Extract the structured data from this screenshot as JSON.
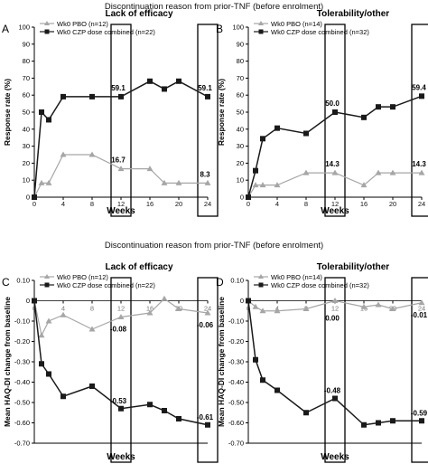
{
  "headings": {
    "top": "Discontinuation reason from prior-TNF (before enrolment)",
    "bottom": "Discontinuation reason from prior-TNF (before enrolment)"
  },
  "colors": {
    "pbo": "#a6a6a6",
    "czp": "#1a1a1a",
    "box": "#000000",
    "axis": "#000000"
  },
  "chart_data": [
    {
      "panel_letter": "A",
      "type": "line",
      "title": "Lack of efficacy",
      "xlabel": "Weeks",
      "ylabel": "Response rate (%)",
      "xlim": [
        0,
        24
      ],
      "ylim": [
        0,
        100
      ],
      "xticks": [
        0,
        4,
        8,
        12,
        16,
        20,
        24
      ],
      "yticks": [
        0,
        10,
        20,
        30,
        40,
        50,
        60,
        70,
        80,
        90,
        100
      ],
      "ytick_labels": [
        "0",
        "10",
        "20",
        "30",
        "40",
        "50",
        "60",
        "70",
        "80",
        "90",
        "100"
      ],
      "legend": "top-left",
      "highlight_weeks": [
        12,
        24
      ],
      "series": [
        {
          "name": "Wk0 PBO (n=12)",
          "marker": "triangle",
          "x": [
            0,
            1,
            2,
            4,
            8,
            12,
            16,
            18,
            20,
            24
          ],
          "y": [
            0,
            8.3,
            8.3,
            25.0,
            25.0,
            16.7,
            16.7,
            8.3,
            8.3,
            8.3
          ]
        },
        {
          "name": "Wk0 CZP dose combined (n=22)",
          "marker": "square",
          "x": [
            0,
            1,
            2,
            4,
            8,
            12,
            16,
            18,
            20,
            24
          ],
          "y": [
            0,
            50.0,
            45.5,
            59.1,
            59.1,
            59.1,
            68.2,
            63.6,
            68.2,
            59.1
          ]
        }
      ],
      "annotations": [
        {
          "text": "59.1",
          "x": 12,
          "y": 59.1,
          "series": 1
        },
        {
          "text": "16.7",
          "x": 12,
          "y": 16.7,
          "series": 0
        },
        {
          "text": "59.1",
          "x": 24,
          "y": 59.1,
          "series": 1
        },
        {
          "text": "8.3",
          "x": 24,
          "y": 8.3,
          "series": 0
        }
      ]
    },
    {
      "panel_letter": "B",
      "type": "line",
      "title": "Tolerability/other",
      "xlabel": "Weeks",
      "ylabel": "Response rate (%)",
      "xlim": [
        0,
        24
      ],
      "ylim": [
        0,
        100
      ],
      "xticks": [
        0,
        4,
        8,
        12,
        16,
        20,
        24
      ],
      "yticks": [
        0,
        10,
        20,
        30,
        40,
        50,
        60,
        70,
        80,
        90,
        100
      ],
      "ytick_labels": [
        "0",
        "10",
        "20",
        "30",
        "40",
        "50",
        "60",
        "70",
        "80",
        "90",
        "100"
      ],
      "legend": "top-left",
      "highlight_weeks": [
        12,
        24
      ],
      "series": [
        {
          "name": "Wk0 PBO (n=14)",
          "marker": "triangle",
          "x": [
            0,
            1,
            2,
            4,
            8,
            12,
            16,
            18,
            20,
            24
          ],
          "y": [
            0,
            7.1,
            7.1,
            7.1,
            14.3,
            14.3,
            7.1,
            14.3,
            14.3,
            14.3
          ]
        },
        {
          "name": "Wk0 CZP dose combined (n=32)",
          "marker": "square",
          "x": [
            0,
            1,
            2,
            4,
            8,
            12,
            16,
            18,
            20,
            24
          ],
          "y": [
            0,
            15.6,
            34.4,
            40.6,
            37.5,
            50.0,
            46.9,
            53.1,
            53.1,
            59.4
          ]
        }
      ],
      "annotations": [
        {
          "text": "50.0",
          "x": 12,
          "y": 50.0,
          "series": 1
        },
        {
          "text": "14.3",
          "x": 12,
          "y": 14.3,
          "series": 0
        },
        {
          "text": "59.4",
          "x": 24,
          "y": 59.4,
          "series": 1
        },
        {
          "text": "14.3",
          "x": 24,
          "y": 14.3,
          "series": 0
        }
      ]
    },
    {
      "panel_letter": "C",
      "type": "line",
      "title": "Lack of efficacy",
      "xlabel": "Weeks",
      "ylabel": "Mean HAQ-DI change from baseline",
      "xlim": [
        0,
        24
      ],
      "ylim": [
        -0.7,
        0.1
      ],
      "xticks": [
        0,
        4,
        8,
        12,
        16,
        20,
        24
      ],
      "yticks": [
        0.1,
        0,
        -0.1,
        -0.2,
        -0.3,
        -0.4,
        -0.5,
        -0.6,
        -0.7
      ],
      "ytick_labels": [
        "0.10",
        "0",
        "-0.10",
        "-0.20",
        "-0.30",
        "-0.40",
        "-0.50",
        "-0.60",
        "-0.70"
      ],
      "legend": "top-left",
      "highlight_weeks": [
        12,
        24
      ],
      "series": [
        {
          "name": "Wk0 PBO (n=12)",
          "marker": "triangle",
          "x": [
            0,
            1,
            2,
            4,
            8,
            12,
            16,
            18,
            20,
            24
          ],
          "y": [
            0,
            -0.17,
            -0.1,
            -0.07,
            -0.14,
            -0.08,
            -0.06,
            0.01,
            -0.04,
            -0.06
          ]
        },
        {
          "name": "Wk0 CZP dose combined (n=22)",
          "marker": "square",
          "x": [
            0,
            1,
            2,
            4,
            8,
            12,
            16,
            18,
            20,
            24
          ],
          "y": [
            0,
            -0.31,
            -0.36,
            -0.47,
            -0.42,
            -0.53,
            -0.51,
            -0.54,
            -0.58,
            -0.61
          ]
        }
      ],
      "annotations": [
        {
          "text": "-0.08",
          "x": 12,
          "y": -0.08,
          "series": 0
        },
        {
          "text": "-0.53",
          "x": 12,
          "y": -0.53,
          "series": 1
        },
        {
          "text": "-0.06",
          "x": 24,
          "y": -0.06,
          "series": 0
        },
        {
          "text": "-0.61",
          "x": 24,
          "y": -0.61,
          "series": 1
        }
      ]
    },
    {
      "panel_letter": "D",
      "type": "line",
      "title": "Tolerability/other",
      "xlabel": "Weeks",
      "ylabel": "Mean HAQ-DI change from baseline",
      "xlim": [
        0,
        24
      ],
      "ylim": [
        -0.7,
        0.1
      ],
      "xticks": [
        0,
        4,
        8,
        12,
        16,
        20,
        24
      ],
      "yticks": [
        0.1,
        0,
        -0.1,
        -0.2,
        -0.3,
        -0.4,
        -0.5,
        -0.6,
        -0.7
      ],
      "ytick_labels": [
        "0.10",
        "0",
        "-0.10",
        "-0.20",
        "-0.30",
        "-0.40",
        "-0.50",
        "-0.60",
        "-0.70"
      ],
      "legend": "top-left",
      "highlight_weeks": [
        12,
        24
      ],
      "series": [
        {
          "name": "Wk0 PBO (n=14)",
          "marker": "triangle",
          "x": [
            0,
            1,
            2,
            4,
            8,
            12,
            16,
            18,
            20,
            24
          ],
          "y": [
            0,
            -0.03,
            -0.05,
            -0.05,
            -0.04,
            0.0,
            -0.03,
            -0.02,
            -0.04,
            -0.01
          ]
        },
        {
          "name": "Wk0 CZP dose combined (n=32)",
          "marker": "square",
          "x": [
            0,
            1,
            2,
            4,
            8,
            12,
            16,
            18,
            20,
            24
          ],
          "y": [
            0,
            -0.29,
            -0.39,
            -0.44,
            -0.55,
            -0.48,
            -0.61,
            -0.6,
            -0.59,
            -0.59
          ]
        }
      ],
      "annotations": [
        {
          "text": "0.00",
          "x": 12,
          "y": 0.0,
          "series": 0
        },
        {
          "text": "-0.48",
          "x": 12,
          "y": -0.48,
          "series": 1
        },
        {
          "text": "-0.01",
          "x": 24,
          "y": -0.01,
          "series": 0
        },
        {
          "text": "-0.59",
          "x": 24,
          "y": -0.59,
          "series": 1
        }
      ]
    }
  ]
}
